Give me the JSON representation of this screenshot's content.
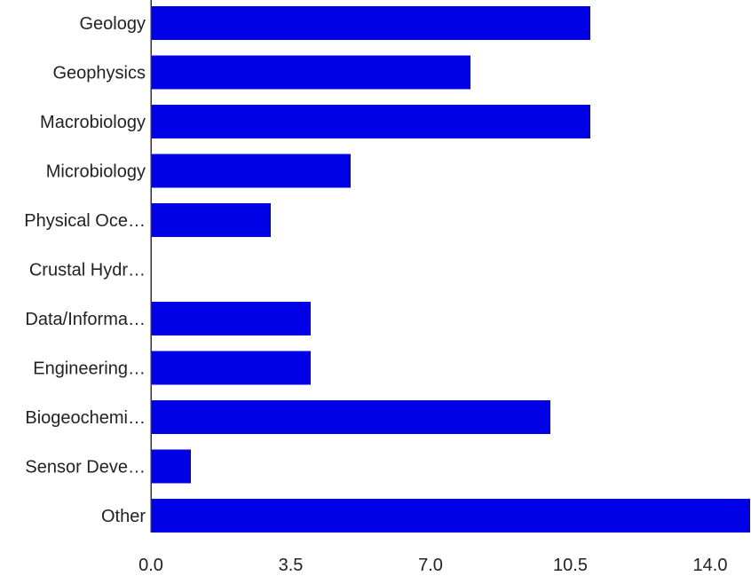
{
  "chart_data": {
    "type": "bar",
    "orientation": "horizontal",
    "categories": [
      "Geology",
      "Geophysics",
      "Macrobiology",
      "Microbiology",
      "Physical Oce…",
      "Crustal Hydr…",
      "Data/Informa…",
      "Engineering…",
      "Biogeochemi…",
      "Sensor Deve…",
      "Other"
    ],
    "values": [
      11,
      8,
      11,
      5,
      3,
      0,
      4,
      4,
      10,
      1,
      15
    ],
    "x_ticks": [
      "0.0",
      "3.5",
      "7.0",
      "10.5",
      "14.0"
    ],
    "xlim": [
      0,
      15
    ],
    "bar_color": "#0000e6",
    "title": "",
    "xlabel": "",
    "ylabel": "",
    "grid": false,
    "legend": "none"
  }
}
